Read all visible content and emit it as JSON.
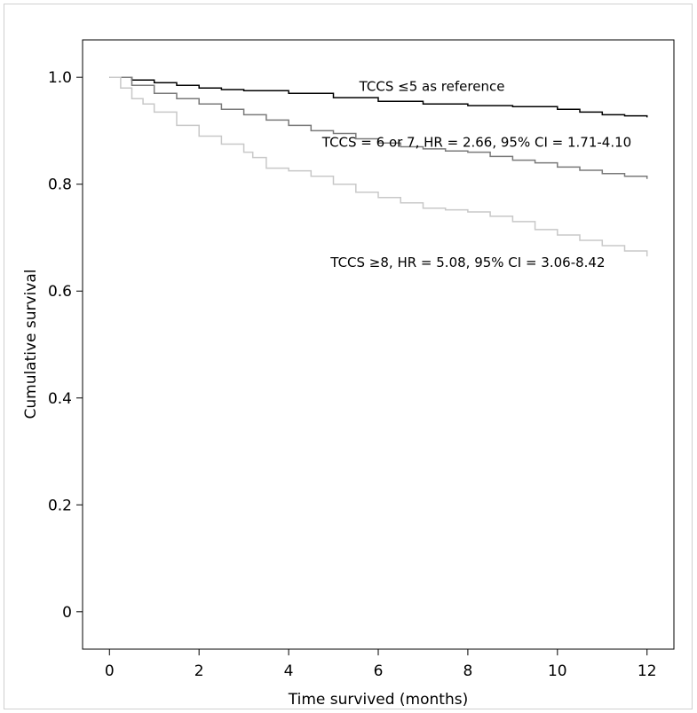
{
  "chart_data": {
    "type": "line",
    "xlabel": "Time survived (months)",
    "ylabel": "Cumulative survival",
    "xlim": [
      -0.6,
      12.6
    ],
    "ylim": [
      -0.07,
      1.07
    ],
    "x_ticks": [
      {
        "value": 0,
        "label": "0"
      },
      {
        "value": 2,
        "label": "2"
      },
      {
        "value": 4,
        "label": "4"
      },
      {
        "value": 6,
        "label": "6"
      },
      {
        "value": 8,
        "label": "8"
      },
      {
        "value": 10,
        "label": "10"
      },
      {
        "value": 12,
        "label": "12"
      }
    ],
    "y_ticks": [
      {
        "value": 0,
        "label": "0"
      },
      {
        "value": 0.2,
        "label": "0.2"
      },
      {
        "value": 0.4,
        "label": "0.4"
      },
      {
        "value": 0.6,
        "label": "0.6"
      },
      {
        "value": 0.8,
        "label": "0.8"
      },
      {
        "value": 1.0,
        "label": "1.0"
      }
    ],
    "grid": false,
    "legend": "none",
    "series": [
      {
        "color": "#000000",
        "x": [
          0,
          0.5,
          1,
          1.5,
          2,
          2.5,
          3,
          4,
          5,
          6,
          7,
          8,
          9,
          10,
          10.5,
          11,
          11.5,
          12
        ],
        "y": [
          1.0,
          0.995,
          0.99,
          0.985,
          0.98,
          0.977,
          0.975,
          0.97,
          0.962,
          0.955,
          0.95,
          0.947,
          0.945,
          0.94,
          0.935,
          0.93,
          0.928,
          0.925
        ]
      },
      {
        "color": "#7a7a7a",
        "x": [
          0,
          0.5,
          1,
          1.5,
          2,
          2.5,
          3,
          3.5,
          4,
          4.5,
          5,
          5.5,
          6,
          6.5,
          7,
          7.5,
          8,
          8.5,
          9,
          9.5,
          10,
          10.5,
          11,
          11.5,
          12
        ],
        "y": [
          1.0,
          0.985,
          0.97,
          0.96,
          0.95,
          0.94,
          0.93,
          0.92,
          0.91,
          0.9,
          0.895,
          0.885,
          0.877,
          0.87,
          0.866,
          0.862,
          0.86,
          0.852,
          0.845,
          0.84,
          0.832,
          0.826,
          0.82,
          0.815,
          0.81
        ]
      },
      {
        "color": "#c8c8c8",
        "x": [
          0,
          0.25,
          0.5,
          0.75,
          1,
          1.5,
          2,
          2.5,
          3,
          3.2,
          3.5,
          4,
          4.5,
          5,
          5.5,
          6,
          6.5,
          7,
          7.5,
          8,
          8.5,
          9,
          9.5,
          10,
          10.5,
          11,
          11.5,
          12
        ],
        "y": [
          1.0,
          0.98,
          0.96,
          0.95,
          0.935,
          0.91,
          0.89,
          0.875,
          0.86,
          0.85,
          0.83,
          0.825,
          0.815,
          0.8,
          0.785,
          0.775,
          0.765,
          0.755,
          0.752,
          0.748,
          0.74,
          0.73,
          0.715,
          0.705,
          0.695,
          0.685,
          0.675,
          0.665
        ]
      }
    ],
    "annotations": [
      {
        "text": "TCCS ≤5 as reference",
        "x": 7.2,
        "y": 0.975
      },
      {
        "text": "TCCS = 6 or 7, HR = 2.66, 95% CI = 1.71-4.10",
        "x": 8.2,
        "y": 0.87
      },
      {
        "text": "TCCS ≥8, HR = 5.08, 95% CI = 3.06-8.42",
        "x": 8.0,
        "y": 0.645
      }
    ]
  }
}
